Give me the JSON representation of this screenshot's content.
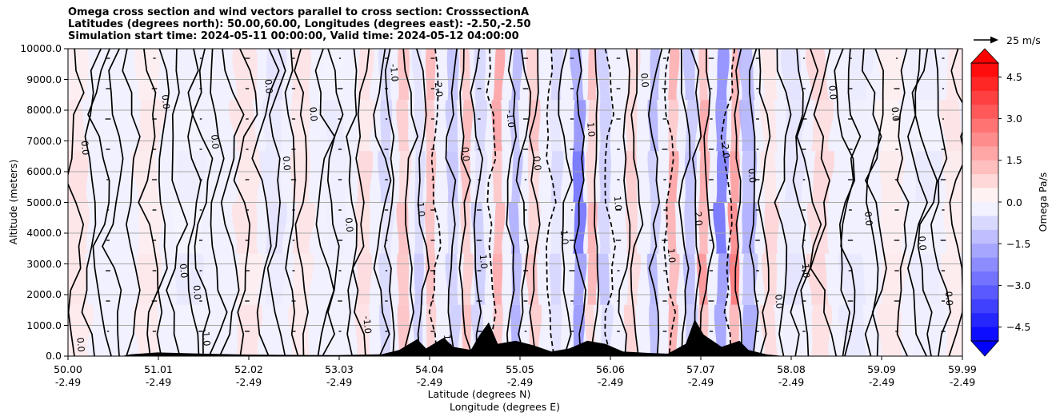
{
  "title_lines": [
    "Omega cross section and wind vectors parallel to cross section: CrosssectionA",
    "Latitudes (degrees north): 50.00,60.00, Longitudes (degrees east): -2.50,-2.50",
    "Simulation start time: 2024-05-11 00:00:00, Valid time: 2024-05-12 04:00:00"
  ],
  "chart_data": {
    "type": "heatmap",
    "ylabel": "Altitude (meters)",
    "xlabel_lat": "Latitude (degrees N)",
    "xlabel_lon": "Longitude (degrees E)",
    "ylim": [
      0,
      10000
    ],
    "y_ticks": [
      "0.0",
      "1000.0",
      "2000.0",
      "3000.0",
      "4000.0",
      "5000.0",
      "6000.0",
      "7000.0",
      "8000.0",
      "9000.0",
      "10000.0"
    ],
    "y_tick_values": [
      0,
      1000,
      2000,
      3000,
      4000,
      5000,
      6000,
      7000,
      8000,
      9000,
      10000
    ],
    "xlim": [
      50.0,
      59.99
    ],
    "x_tick_values": [
      50.0,
      51.01,
      52.02,
      53.03,
      54.04,
      55.05,
      56.06,
      57.07,
      58.08,
      59.09,
      59.99
    ],
    "x_tick_lat": [
      "50.00",
      "51.01",
      "52.02",
      "53.03",
      "54.04",
      "55.05",
      "56.06",
      "57.07",
      "58.08",
      "59.09",
      "59.99"
    ],
    "x_tick_lon": [
      "-2.49",
      "-2.49",
      "-2.49",
      "-2.49",
      "-2.49",
      "-2.49",
      "-2.49",
      "-2.49",
      "-2.49",
      "-2.49",
      "-2.49"
    ],
    "colorbar": {
      "label": "Omega Pa/s",
      "range": [
        -5.0,
        5.0
      ],
      "ticks": [
        "4.5",
        "3.0",
        "1.5",
        "0.0",
        "−1.5",
        "−3.0",
        "−4.5"
      ],
      "tick_values": [
        4.5,
        3.0,
        1.5,
        0.0,
        -1.5,
        -3.0,
        -4.5
      ],
      "colormap": "bwr",
      "extend": "both"
    },
    "contour_labels": [
      "0.0",
      "1.0",
      "-1.0",
      "2.0",
      "-2.0"
    ],
    "quiver_key": "25 m/s",
    "colors": {
      "positive": "#ff0000",
      "negative": "#0000ff",
      "neutral": "#ffffff",
      "terrain": "#000000"
    }
  }
}
